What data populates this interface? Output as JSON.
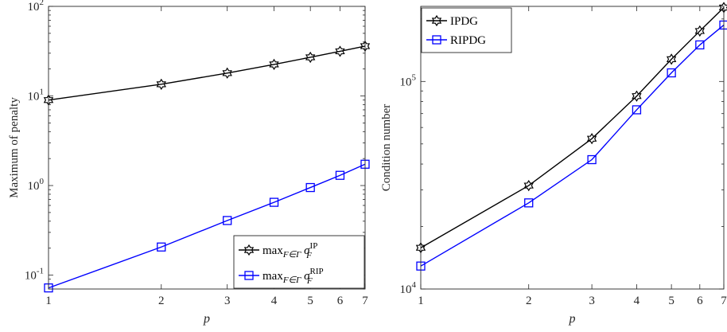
{
  "chart_data": [
    {
      "type": "line",
      "xlabel": "p",
      "ylabel": "Maximum of penalty",
      "xscale": "log",
      "yscale": "log",
      "xlim": [
        1,
        7
      ],
      "ylim": [
        0.07,
        100
      ],
      "xticks": [
        1,
        2,
        3,
        4,
        5,
        6,
        7
      ],
      "xtick_labels": [
        "1",
        "2",
        "3",
        "4",
        "5",
        "6",
        "7"
      ],
      "yticks": [
        0.1,
        1,
        10,
        100
      ],
      "ytick_labels": [
        {
          "base": "10",
          "exp": "-1"
        },
        {
          "base": "10",
          "exp": "0"
        },
        {
          "base": "10",
          "exp": "1"
        },
        {
          "base": "10",
          "exp": "2"
        }
      ],
      "grid": false,
      "legend_position": "bottom-right",
      "x": [
        1,
        2,
        3,
        4,
        5,
        6,
        7
      ],
      "series": [
        {
          "legend": {
            "op": "max",
            "sub": "F∈Γ",
            "sym": "σ",
            "sub2": "F",
            "sup": "IP"
          },
          "color": "#000000",
          "marker": "hexagram",
          "values": [
            9.0,
            13.5,
            18.0,
            22.5,
            27.0,
            31.5,
            36.0
          ]
        },
        {
          "legend": {
            "op": "max",
            "sub": "F∈Γ",
            "sym": "σ",
            "sub2": "F",
            "sup": "RIP"
          },
          "color": "#0000ff",
          "marker": "square",
          "values": [
            0.072,
            0.206,
            0.407,
            0.65,
            0.95,
            1.3,
            1.73
          ]
        }
      ]
    },
    {
      "type": "line",
      "xlabel": "p",
      "ylabel": "Condition number",
      "xscale": "log",
      "yscale": "log",
      "xlim": [
        1,
        7
      ],
      "ylim": [
        10000,
        230000
      ],
      "xticks": [
        1,
        2,
        3,
        4,
        5,
        6,
        7
      ],
      "xtick_labels": [
        "1",
        "2",
        "3",
        "4",
        "5",
        "6",
        "7"
      ],
      "yticks": [
        10000,
        100000
      ],
      "ytick_labels": [
        {
          "base": "10",
          "exp": "4"
        },
        {
          "base": "10",
          "exp": "5"
        }
      ],
      "grid": false,
      "legend_position": "top-left",
      "x": [
        1,
        2,
        3,
        4,
        5,
        6,
        7
      ],
      "series": [
        {
          "name": "IPDG",
          "color": "#000000",
          "marker": "hexagram",
          "values": [
            15800,
            31500,
            53000,
            85000,
            128000,
            175000,
            227000
          ]
        },
        {
          "name": "RIPDG",
          "color": "#0000ff",
          "marker": "square",
          "values": [
            12900,
            26000,
            42000,
            73000,
            110000,
            150000,
            187000
          ]
        }
      ]
    }
  ]
}
